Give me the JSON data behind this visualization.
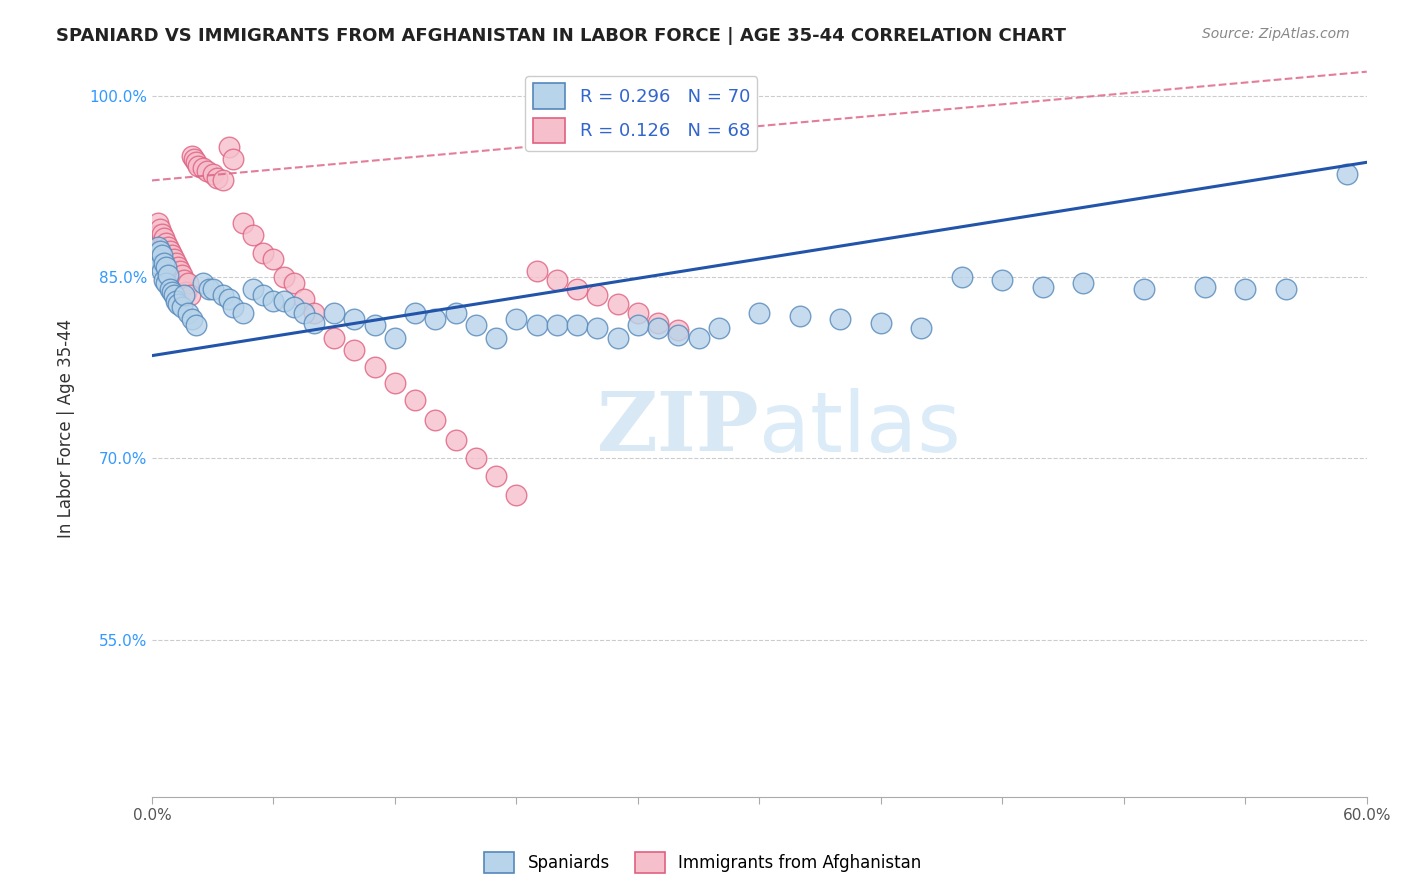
{
  "title": "SPANIARD VS IMMIGRANTS FROM AFGHANISTAN IN LABOR FORCE | AGE 35-44 CORRELATION CHART",
  "source": "Source: ZipAtlas.com",
  "ylabel": "In Labor Force | Age 35-44",
  "xlim": [
    0.0,
    0.6
  ],
  "ylim": [
    0.42,
    1.03
  ],
  "xticks": [
    0.0,
    0.06,
    0.12,
    0.18,
    0.24,
    0.3,
    0.36,
    0.42,
    0.48,
    0.54,
    0.6
  ],
  "xticklabels": [
    "0.0%",
    "",
    "",
    "",
    "",
    "",
    "",
    "",
    "",
    "",
    "60.0%"
  ],
  "ytick_positions": [
    0.55,
    0.7,
    0.85,
    1.0
  ],
  "yticklabels": [
    "55.0%",
    "70.0%",
    "85.0%",
    "100.0%"
  ],
  "grid_color": "#cccccc",
  "background_color": "#ffffff",
  "watermark_zip": "ZIP",
  "watermark_atlas": "atlas",
  "spaniards_color": "#b8d4ea",
  "spaniards_edge": "#5588bb",
  "afghanistan_color": "#f5c0cc",
  "afghanistan_edge": "#e06080",
  "spaniards_R": 0.296,
  "spaniards_N": 70,
  "afghanistan_R": 0.126,
  "afghanistan_N": 68,
  "spaniards_line_color": "#2255aa",
  "afghanistan_line_color": "#dd6688",
  "sp_line_x0": 0.0,
  "sp_line_y0": 0.785,
  "sp_line_x1": 0.6,
  "sp_line_y1": 0.945,
  "af_line_x0": 0.0,
  "af_line_y0": 0.93,
  "af_line_x1": 0.6,
  "af_line_y1": 1.02,
  "spaniards_x": [
    0.002,
    0.003,
    0.003,
    0.004,
    0.004,
    0.005,
    0.005,
    0.006,
    0.006,
    0.007,
    0.007,
    0.008,
    0.009,
    0.01,
    0.011,
    0.012,
    0.013,
    0.015,
    0.016,
    0.018,
    0.02,
    0.022,
    0.025,
    0.028,
    0.03,
    0.035,
    0.038,
    0.04,
    0.045,
    0.05,
    0.055,
    0.06,
    0.065,
    0.07,
    0.075,
    0.08,
    0.09,
    0.1,
    0.11,
    0.12,
    0.13,
    0.14,
    0.15,
    0.16,
    0.17,
    0.18,
    0.19,
    0.2,
    0.21,
    0.22,
    0.23,
    0.24,
    0.25,
    0.26,
    0.27,
    0.28,
    0.3,
    0.32,
    0.34,
    0.36,
    0.38,
    0.4,
    0.42,
    0.44,
    0.46,
    0.49,
    0.52,
    0.54,
    0.56,
    0.59
  ],
  "spaniards_y": [
    0.87,
    0.875,
    0.865,
    0.872,
    0.86,
    0.868,
    0.855,
    0.862,
    0.848,
    0.858,
    0.845,
    0.852,
    0.84,
    0.838,
    0.835,
    0.83,
    0.828,
    0.825,
    0.835,
    0.82,
    0.815,
    0.81,
    0.845,
    0.84,
    0.84,
    0.835,
    0.832,
    0.825,
    0.82,
    0.84,
    0.835,
    0.83,
    0.83,
    0.825,
    0.82,
    0.812,
    0.82,
    0.815,
    0.81,
    0.8,
    0.82,
    0.815,
    0.82,
    0.81,
    0.8,
    0.815,
    0.81,
    0.81,
    0.81,
    0.808,
    0.8,
    0.81,
    0.808,
    0.802,
    0.8,
    0.808,
    0.82,
    0.818,
    0.815,
    0.812,
    0.808,
    0.85,
    0.848,
    0.842,
    0.845,
    0.84,
    0.842,
    0.84,
    0.84,
    0.935
  ],
  "afghanistan_x": [
    0.002,
    0.003,
    0.003,
    0.004,
    0.004,
    0.005,
    0.005,
    0.006,
    0.006,
    0.007,
    0.007,
    0.008,
    0.008,
    0.009,
    0.009,
    0.01,
    0.01,
    0.011,
    0.011,
    0.012,
    0.012,
    0.013,
    0.013,
    0.014,
    0.014,
    0.015,
    0.015,
    0.016,
    0.017,
    0.018,
    0.019,
    0.02,
    0.021,
    0.022,
    0.023,
    0.025,
    0.027,
    0.03,
    0.032,
    0.035,
    0.038,
    0.04,
    0.045,
    0.05,
    0.055,
    0.06,
    0.065,
    0.07,
    0.075,
    0.08,
    0.09,
    0.1,
    0.11,
    0.12,
    0.13,
    0.14,
    0.15,
    0.16,
    0.17,
    0.18,
    0.19,
    0.2,
    0.21,
    0.22,
    0.23,
    0.24,
    0.25,
    0.26
  ],
  "afghanistan_y": [
    0.88,
    0.895,
    0.885,
    0.89,
    0.878,
    0.886,
    0.875,
    0.882,
    0.872,
    0.878,
    0.868,
    0.875,
    0.865,
    0.872,
    0.862,
    0.868,
    0.858,
    0.865,
    0.855,
    0.862,
    0.852,
    0.858,
    0.848,
    0.855,
    0.845,
    0.852,
    0.842,
    0.848,
    0.838,
    0.845,
    0.835,
    0.95,
    0.948,
    0.945,
    0.942,
    0.94,
    0.938,
    0.935,
    0.932,
    0.93,
    0.958,
    0.948,
    0.895,
    0.885,
    0.87,
    0.865,
    0.85,
    0.845,
    0.832,
    0.82,
    0.8,
    0.79,
    0.776,
    0.762,
    0.748,
    0.732,
    0.715,
    0.7,
    0.685,
    0.67,
    0.855,
    0.848,
    0.84,
    0.835,
    0.828,
    0.82,
    0.812,
    0.806
  ]
}
